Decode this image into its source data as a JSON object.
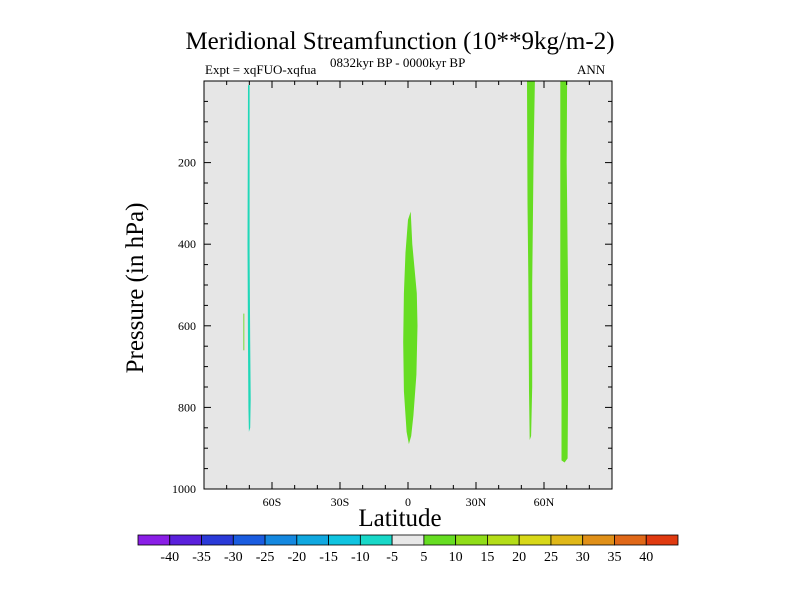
{
  "chart_data": {
    "type": "contour",
    "title": "Meridional Streamfunction (10**9kg/m-2)",
    "subtitle_left": "Expt = xqFUO-xqfua",
    "subtitle_center": "0832kyr BP - 0000kyr BP",
    "subtitle_right": "ANN",
    "xlabel": "Latitude",
    "ylabel": "Pressure (in hPa)",
    "xlim": [
      -90,
      90
    ],
    "ylim": [
      0,
      1000
    ],
    "y_inverted": true,
    "x_ticks": [
      {
        "value": -60,
        "label": "60S"
      },
      {
        "value": -30,
        "label": "30S"
      },
      {
        "value": 0,
        "label": "0"
      },
      {
        "value": 30,
        "label": "30N"
      },
      {
        "value": 60,
        "label": "60N"
      }
    ],
    "y_ticks": [
      {
        "value": 200,
        "label": "200"
      },
      {
        "value": 400,
        "label": "400"
      },
      {
        "value": 600,
        "label": "600"
      },
      {
        "value": 800,
        "label": "800"
      },
      {
        "value": 1000,
        "label": "1000"
      }
    ],
    "background_color": "#e6e6e6",
    "regions": [
      {
        "name": "southern-streak",
        "level": -10,
        "color": "#20d8b8",
        "outline": [
          [
            -70.6,
            10
          ],
          [
            -69.9,
            10
          ],
          [
            -69.9,
            420
          ],
          [
            -69.6,
            640
          ],
          [
            -69.4,
            780
          ],
          [
            -69.6,
            850
          ],
          [
            -70.2,
            860
          ],
          [
            -70.4,
            800
          ],
          [
            -70.6,
            650
          ],
          [
            -70.8,
            400
          ]
        ]
      },
      {
        "name": "southern-speck",
        "level": 5,
        "color": "#66dd22",
        "outline": [
          [
            -72.6,
            570
          ],
          [
            -72.2,
            570
          ],
          [
            -72.2,
            660
          ],
          [
            -72.6,
            660
          ]
        ]
      }
    ],
    "regions_extra": [
      {
        "name": "equator-lobe",
        "level": 5,
        "color": "#66dd22",
        "outline": [
          [
            1.2,
            320
          ],
          [
            1.9,
            400
          ],
          [
            3.9,
            520
          ],
          [
            4.2,
            600
          ],
          [
            3.7,
            720
          ],
          [
            2.4,
            820
          ],
          [
            1.4,
            870
          ],
          [
            0.4,
            890
          ],
          [
            -0.6,
            860
          ],
          [
            -1.8,
            760
          ],
          [
            -2.1,
            640
          ],
          [
            -1.8,
            520
          ],
          [
            -1.1,
            420
          ],
          [
            0,
            340
          ]
        ]
      },
      {
        "name": "northern-band-1",
        "level": 5,
        "color": "#66dd22",
        "outline": [
          [
            52.5,
            0
          ],
          [
            56.0,
            0
          ],
          [
            55.4,
            180
          ],
          [
            54.8,
            500
          ],
          [
            54.8,
            750
          ],
          [
            54.3,
            870
          ],
          [
            53.7,
            880
          ],
          [
            53.4,
            760
          ],
          [
            53.1,
            500
          ],
          [
            52.7,
            300
          ]
        ]
      },
      {
        "name": "northern-band-2",
        "level": 5,
        "color": "#66dd22",
        "outline": [
          [
            67.2,
            0
          ],
          [
            70.2,
            0
          ],
          [
            70.0,
            200
          ],
          [
            70.6,
            500
          ],
          [
            70.6,
            780
          ],
          [
            70.4,
            925
          ],
          [
            69.1,
            935
          ],
          [
            67.7,
            930
          ],
          [
            67.7,
            780
          ],
          [
            67.2,
            500
          ]
        ]
      }
    ],
    "colorbar": {
      "labels": [
        "-40",
        "-35",
        "-30",
        "-25",
        "-20",
        "-15",
        "-10",
        "-5",
        "5",
        "10",
        "15",
        "20",
        "25",
        "30",
        "35",
        "40"
      ],
      "colors": [
        "#8a1ee6",
        "#5a20dc",
        "#2a3ad8",
        "#1a5ce0",
        "#1488e0",
        "#10a8e0",
        "#10c4e0",
        "#18d8c8",
        "#e8e8e8",
        "#66dd22",
        "#90dd18",
        "#b4dd18",
        "#d8d818",
        "#e0b818",
        "#e09018",
        "#e06818",
        "#e03a10"
      ]
    }
  }
}
